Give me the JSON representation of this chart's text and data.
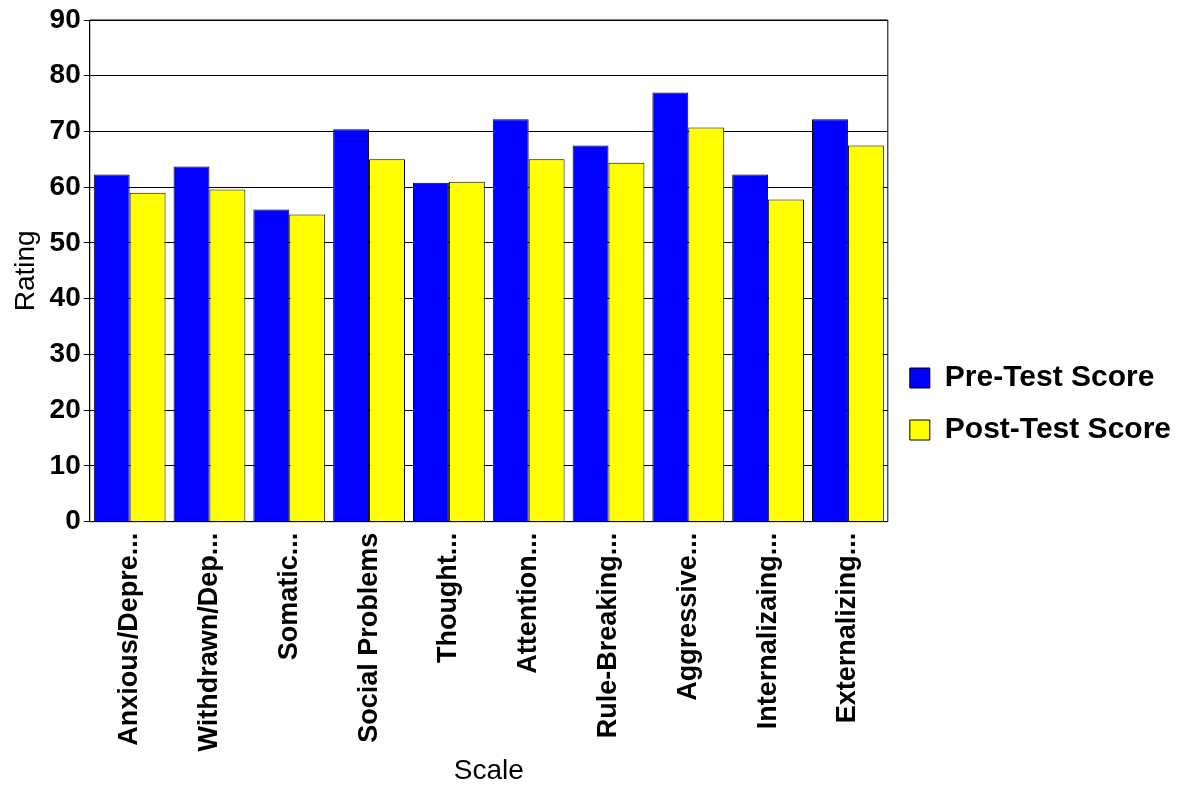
{
  "chart_data": {
    "type": "bar",
    "xlabel": "Scale",
    "ylabel": "Rating",
    "categories": [
      "Anxious/Depre...",
      "Withdrawn/Dep...",
      "Somatic...",
      "Social Problems",
      "Thought...",
      "Attention...",
      "Rule-Breaking...",
      "Aggressive...",
      "Internalizaing...",
      "Externalizing..."
    ],
    "series": [
      {
        "name": "Pre-Test Score",
        "color": "#0000ff",
        "values": [
          62.3,
          63.7,
          56,
          70.4,
          60.8,
          72.2,
          67.5,
          77,
          62.3,
          72.2
        ]
      },
      {
        "name": "Post-Test Score",
        "color": "#ffff00",
        "values": [
          59,
          59.6,
          55.1,
          65,
          61,
          65,
          64.4,
          70.7,
          57.8,
          67.5
        ]
      }
    ],
    "ylim": [
      0,
      90
    ],
    "yticks": [
      0,
      10,
      20,
      30,
      40,
      50,
      60,
      70,
      80,
      90
    ],
    "grid": "y",
    "legend": "right"
  }
}
